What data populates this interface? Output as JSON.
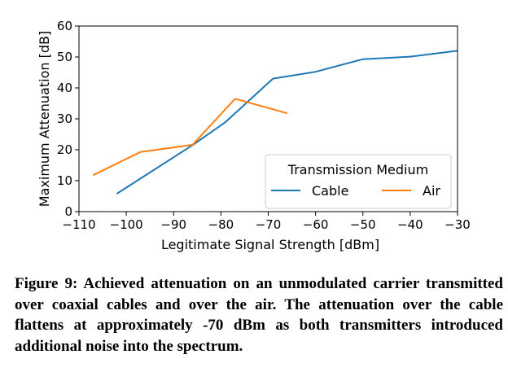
{
  "chart_data": {
    "type": "line",
    "xlabel": "Legitimate Signal Strength [dBm]",
    "ylabel": "Maximum Attenuation [dB]",
    "xlim": [
      -110,
      -30
    ],
    "ylim": [
      0,
      60
    ],
    "xticks": [
      -110,
      -100,
      -90,
      -80,
      -70,
      -60,
      -50,
      -40,
      -30
    ],
    "yticks": [
      0,
      10,
      20,
      30,
      40,
      50,
      60
    ],
    "xtick_labels": [
      "−110",
      "−100",
      "−90",
      "−80",
      "−70",
      "−60",
      "−50",
      "−40",
      "−30"
    ],
    "ytick_labels": [
      "0",
      "10",
      "20",
      "30",
      "40",
      "50",
      "60"
    ],
    "legend": {
      "title": "Transmission Medium",
      "placement": "lower-right"
    },
    "grid": false,
    "series": [
      {
        "name": "Cable",
        "color": "#1f77b4",
        "x": [
          -102,
          -86,
          -79,
          -69,
          -60,
          -50,
          -40,
          -30
        ],
        "y": [
          5.8,
          21.5,
          29,
          43,
          45.2,
          49.3,
          50.1,
          52
        ]
      },
      {
        "name": "Air",
        "color": "#ff7f0e",
        "x": [
          -107,
          -97,
          -86,
          -77,
          -66
        ],
        "y": [
          11.8,
          19.3,
          21.6,
          36.5,
          31.8
        ]
      }
    ]
  },
  "caption": "Figure 9: Achieved attenuation on an unmodulated carrier transmitted over coaxial cables and over the air. The attenuation over the cable flattens at approximately -70 dBm as both transmitters introduced additional noise into the spectrum."
}
